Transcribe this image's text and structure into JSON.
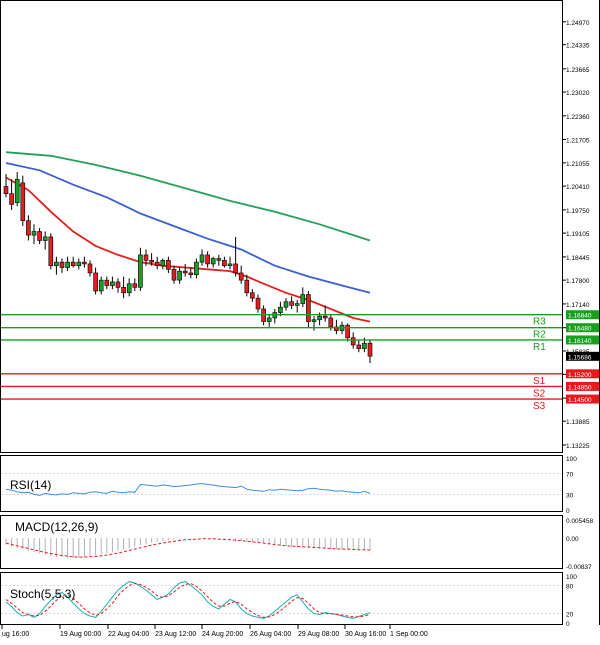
{
  "chart_data": [
    {
      "type": "candlestick",
      "y_ticks": [
        "1.24970",
        "1.24335",
        "1.23665",
        "1.23020",
        "1.22360",
        "1.21705",
        "1.21055",
        "1.20410",
        "1.19750",
        "1.19105",
        "1.18445",
        "1.17800",
        "1.17140",
        "1.16480",
        "1.15835",
        "1.15185",
        "1.14525",
        "1.13885",
        "1.13225"
      ],
      "ylim": [
        1.1303,
        1.2552
      ],
      "x_ticks": [
        "ug 16:00",
        "19 Aug 00:00",
        "22 Aug 04:00",
        "23 Aug 12:00",
        "24 Aug 20:00",
        "26 Aug 04:00",
        "29 Aug 08:00",
        "30 Aug 16:00",
        "1 Sep 00:00"
      ],
      "current_price": "1.15686",
      "levels": [
        {
          "name": "R3",
          "value": 1.1684,
          "label": "1.16840",
          "color": "#16a01e"
        },
        {
          "name": "R2",
          "value": 1.1648,
          "label": "1.16480",
          "color": "#16a01e"
        },
        {
          "name": "R1",
          "value": 1.1614,
          "label": "1.16140",
          "color": "#16a01e"
        },
        {
          "name": "S1",
          "value": 1.152,
          "label": "1.15200",
          "color": "#e8181c"
        },
        {
          "name": "S2",
          "value": 1.1485,
          "label": "1.14850",
          "color": "#e8181c"
        },
        {
          "name": "S3",
          "value": 1.145,
          "label": "1.14500",
          "color": "#e8181c"
        }
      ],
      "candles": [
        [
          1.204,
          1.2075,
          1.201,
          1.202
        ],
        [
          1.202,
          1.206,
          1.1975,
          1.199
        ],
        [
          1.1995,
          1.208,
          1.1985,
          1.206
        ],
        [
          1.205,
          1.207,
          1.193,
          1.1945
        ],
        [
          1.1945,
          1.196,
          1.189,
          1.1905
        ],
        [
          1.1905,
          1.1935,
          1.188,
          1.1915
        ],
        [
          1.1915,
          1.1925,
          1.188,
          1.189
        ],
        [
          1.189,
          1.1915,
          1.1865,
          1.19
        ],
        [
          1.19,
          1.191,
          1.181,
          1.182
        ],
        [
          1.182,
          1.1845,
          1.1795,
          1.183
        ],
        [
          1.183,
          1.184,
          1.18,
          1.1815
        ],
        [
          1.1815,
          1.1845,
          1.1805,
          1.183
        ],
        [
          1.183,
          1.1845,
          1.1815,
          1.182
        ],
        [
          1.182,
          1.184,
          1.181,
          1.183
        ],
        [
          1.183,
          1.1845,
          1.1815,
          1.1825
        ],
        [
          1.1825,
          1.1835,
          1.179,
          1.18
        ],
        [
          1.18,
          1.1815,
          1.174,
          1.175
        ],
        [
          1.175,
          1.179,
          1.174,
          1.178
        ],
        [
          1.178,
          1.179,
          1.1755,
          1.1765
        ],
        [
          1.1765,
          1.179,
          1.1755,
          1.1775
        ],
        [
          1.1775,
          1.1785,
          1.1745,
          1.176
        ],
        [
          1.176,
          1.179,
          1.173,
          1.1745
        ],
        [
          1.1745,
          1.1785,
          1.1735,
          1.177
        ],
        [
          1.177,
          1.1785,
          1.175,
          1.176
        ],
        [
          1.176,
          1.187,
          1.175,
          1.185
        ],
        [
          1.185,
          1.1865,
          1.182,
          1.1835
        ],
        [
          1.1835,
          1.1855,
          1.182,
          1.183
        ],
        [
          1.183,
          1.1845,
          1.181,
          1.182
        ],
        [
          1.182,
          1.184,
          1.181,
          1.1835
        ],
        [
          1.1835,
          1.1845,
          1.18,
          1.181
        ],
        [
          1.181,
          1.182,
          1.177,
          1.178
        ],
        [
          1.178,
          1.1815,
          1.177,
          1.1805
        ],
        [
          1.1805,
          1.1825,
          1.179,
          1.18
        ],
        [
          1.18,
          1.1815,
          1.1785,
          1.1795
        ],
        [
          1.1795,
          1.184,
          1.1785,
          1.183
        ],
        [
          1.183,
          1.1865,
          1.182,
          1.185
        ],
        [
          1.185,
          1.186,
          1.1815,
          1.1825
        ],
        [
          1.1825,
          1.1845,
          1.1815,
          1.184
        ],
        [
          1.184,
          1.185,
          1.182,
          1.1835
        ],
        [
          1.1835,
          1.1845,
          1.1815,
          1.182
        ],
        [
          1.182,
          1.1845,
          1.181,
          1.1825
        ],
        [
          1.1825,
          1.19,
          1.179,
          1.18
        ],
        [
          1.18,
          1.182,
          1.177,
          1.178
        ],
        [
          1.178,
          1.1795,
          1.1735,
          1.1745
        ],
        [
          1.1745,
          1.1755,
          1.172,
          1.173
        ],
        [
          1.173,
          1.174,
          1.169,
          1.17
        ],
        [
          1.17,
          1.171,
          1.1655,
          1.1665
        ],
        [
          1.1665,
          1.1685,
          1.165,
          1.1675
        ],
        [
          1.1675,
          1.17,
          1.166,
          1.169
        ],
        [
          1.169,
          1.172,
          1.168,
          1.1705
        ],
        [
          1.1705,
          1.173,
          1.1695,
          1.172
        ],
        [
          1.172,
          1.1735,
          1.17,
          1.171
        ],
        [
          1.171,
          1.1725,
          1.169,
          1.1715
        ],
        [
          1.1715,
          1.176,
          1.1705,
          1.174
        ],
        [
          1.174,
          1.175,
          1.165,
          1.1665
        ],
        [
          1.1665,
          1.168,
          1.164,
          1.167
        ],
        [
          1.167,
          1.169,
          1.1655,
          1.168
        ],
        [
          1.168,
          1.171,
          1.1665,
          1.1675
        ],
        [
          1.1675,
          1.1685,
          1.164,
          1.165
        ],
        [
          1.165,
          1.167,
          1.163,
          1.164
        ],
        [
          1.164,
          1.1665,
          1.163,
          1.1655
        ],
        [
          1.1655,
          1.166,
          1.161,
          1.162
        ],
        [
          1.162,
          1.1635,
          1.159,
          1.16
        ],
        [
          1.16,
          1.1615,
          1.158,
          1.159
        ],
        [
          1.159,
          1.162,
          1.158,
          1.1605
        ],
        [
          1.1605,
          1.1615,
          1.155,
          1.1569
        ]
      ],
      "moving_averages": [
        {
          "color": "#22a05a",
          "points": [
            [
              0,
              1.2135
            ],
            [
              8,
              1.2125
            ],
            [
              16,
              1.21
            ],
            [
              24,
              1.207
            ],
            [
              32,
              1.2035
            ],
            [
              40,
              1.2
            ],
            [
              48,
              1.197
            ],
            [
              56,
              1.1935
            ],
            [
              62,
              1.1905
            ],
            [
              65,
              1.189
            ]
          ]
        },
        {
          "color": "#3a5fd0",
          "points": [
            [
              0,
              1.2105
            ],
            [
              6,
              1.2085
            ],
            [
              12,
              1.2045
            ],
            [
              18,
              1.201
            ],
            [
              24,
              1.1965
            ],
            [
              30,
              1.193
            ],
            [
              36,
              1.1895
            ],
            [
              42,
              1.1865
            ],
            [
              48,
              1.182
            ],
            [
              54,
              1.179
            ],
            [
              60,
              1.1765
            ],
            [
              65,
              1.1745
            ]
          ]
        },
        {
          "color": "#e02020",
          "points": [
            [
              0,
              1.2065
            ],
            [
              4,
              1.203
            ],
            [
              8,
              1.197
            ],
            [
              12,
              1.1915
            ],
            [
              16,
              1.1875
            ],
            [
              20,
              1.185
            ],
            [
              24,
              1.183
            ],
            [
              28,
              1.182
            ],
            [
              32,
              1.1815
            ],
            [
              36,
              1.181
            ],
            [
              40,
              1.1805
            ],
            [
              43,
              1.179
            ],
            [
              46,
              1.177
            ],
            [
              50,
              1.1745
            ],
            [
              54,
              1.1725
            ],
            [
              58,
              1.17
            ],
            [
              62,
              1.1675
            ],
            [
              65,
              1.1665
            ]
          ]
        }
      ]
    },
    {
      "type": "line",
      "title": "RSI(14)",
      "y_ticks": [
        "100",
        "70",
        "30",
        "0"
      ],
      "ylim": [
        0,
        100
      ],
      "color": "#3a8fe0",
      "values": [
        40,
        38,
        35,
        33,
        34,
        30,
        28,
        32,
        30,
        29,
        31,
        30,
        33,
        32,
        31,
        34,
        35,
        33,
        32,
        36,
        34,
        33,
        35,
        34,
        49,
        48,
        47,
        46,
        48,
        47,
        45,
        46,
        47,
        48,
        50,
        51,
        49,
        48,
        46,
        45,
        44,
        43,
        46,
        40,
        38,
        37,
        36,
        39,
        38,
        40,
        39,
        38,
        37,
        38,
        41,
        42,
        40,
        39,
        38,
        36,
        37,
        35,
        34,
        33,
        36,
        32
      ]
    },
    {
      "type": "histogram",
      "title": "MACD(12,26,9)",
      "y_ticks": [
        "0.005458",
        "0.00",
        "-0.00837"
      ],
      "ylim": [
        -0.00837,
        0.005458
      ],
      "bar_color": "#b0b0b0",
      "signal_color": "#e02020",
      "values": [
        -0.002,
        -0.0025,
        -0.003,
        -0.0034,
        -0.0038,
        -0.0042,
        -0.0046,
        -0.005,
        -0.0053,
        -0.0056,
        -0.0058,
        -0.006,
        -0.006,
        -0.0059,
        -0.0057,
        -0.0055,
        -0.0052,
        -0.0049,
        -0.0046,
        -0.0042,
        -0.0038,
        -0.0034,
        -0.003,
        -0.0026,
        -0.0022,
        -0.0018,
        -0.0014,
        -0.0011,
        -0.0008,
        -0.0006,
        -0.0004,
        -0.0003,
        -0.0002,
        -0.0001,
        -0.0001,
        0.0,
        -0.0001,
        -0.0002,
        -0.0003,
        -0.0004,
        -0.0005,
        -0.0006,
        -0.0008,
        -0.001,
        -0.0012,
        -0.0014,
        -0.0016,
        -0.0018,
        -0.002,
        -0.0022,
        -0.0024,
        -0.0026,
        -0.0027,
        -0.0028,
        -0.0029,
        -0.003,
        -0.0031,
        -0.0032,
        -0.0033,
        -0.0034,
        -0.0034,
        -0.0035,
        -0.0035,
        -0.0036,
        -0.0036,
        -0.0037
      ],
      "signal": [
        -0.0015,
        -0.0019,
        -0.0023,
        -0.0027,
        -0.0031,
        -0.0035,
        -0.0039,
        -0.0043,
        -0.0046,
        -0.0049,
        -0.0052,
        -0.0054,
        -0.0056,
        -0.0057,
        -0.0057,
        -0.0056,
        -0.0055,
        -0.0053,
        -0.0051,
        -0.0048,
        -0.0045,
        -0.0041,
        -0.0037,
        -0.0033,
        -0.0029,
        -0.0025,
        -0.0021,
        -0.0018,
        -0.0015,
        -0.0012,
        -0.0009,
        -0.0007,
        -0.0005,
        -0.0004,
        -0.0003,
        -0.0002,
        -0.0002,
        -0.0002,
        -0.0003,
        -0.0004,
        -0.0005,
        -0.0006,
        -0.0007,
        -0.0009,
        -0.0011,
        -0.0013,
        -0.0015,
        -0.0017,
        -0.0019,
        -0.0021,
        -0.0023,
        -0.0024,
        -0.0025,
        -0.0026,
        -0.0027,
        -0.0028,
        -0.0029,
        -0.003,
        -0.0031,
        -0.0032,
        -0.0033,
        -0.0033,
        -0.0034,
        -0.0035,
        -0.0035,
        -0.0036
      ]
    },
    {
      "type": "line",
      "title": "Stoch(5,5,3)",
      "y_ticks": [
        "100",
        "80",
        "20",
        "0"
      ],
      "ylim": [
        0,
        100
      ],
      "main_color": "#1ab0b0",
      "signal_color": "#e02020",
      "main": [
        45,
        35,
        22,
        15,
        18,
        12,
        20,
        35,
        48,
        60,
        65,
        55,
        42,
        30,
        20,
        15,
        12,
        25,
        40,
        55,
        70,
        80,
        88,
        85,
        78,
        70,
        60,
        50,
        55,
        62,
        75,
        85,
        88,
        80,
        70,
        60,
        45,
        35,
        30,
        40,
        50,
        45,
        30,
        20,
        15,
        12,
        10,
        15,
        25,
        35,
        45,
        55,
        60,
        45,
        30,
        20,
        18,
        22,
        20,
        18,
        15,
        12,
        10,
        14,
        18,
        22
      ],
      "signal": [
        50,
        42,
        32,
        22,
        18,
        15,
        16,
        25,
        36,
        48,
        58,
        60,
        52,
        42,
        30,
        22,
        16,
        20,
        30,
        42,
        58,
        70,
        80,
        84,
        82,
        76,
        68,
        58,
        54,
        58,
        66,
        76,
        82,
        84,
        78,
        68,
        56,
        44,
        36,
        36,
        42,
        46,
        40,
        30,
        22,
        16,
        12,
        13,
        18,
        26,
        36,
        46,
        54,
        52,
        42,
        30,
        22,
        20,
        20,
        19,
        17,
        15,
        13,
        13,
        15,
        18
      ]
    }
  ]
}
